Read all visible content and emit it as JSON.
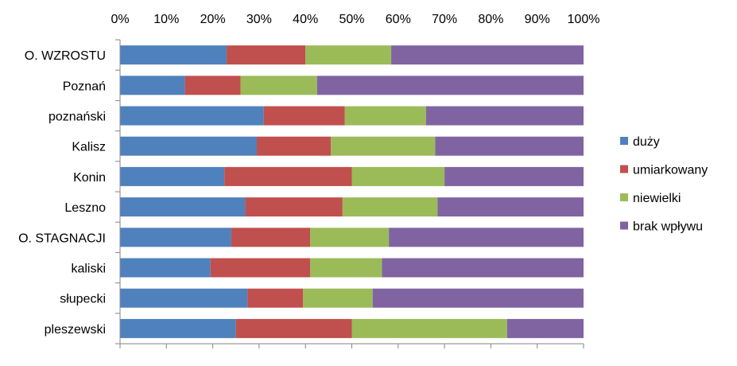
{
  "chart_data": {
    "type": "bar",
    "orientation": "horizontal",
    "stacked": "percent",
    "title": "",
    "xlabel": "",
    "ylabel": "",
    "xlim": [
      0,
      100
    ],
    "x_ticks": [
      "0%",
      "10%",
      "20%",
      "30%",
      "40%",
      "50%",
      "60%",
      "70%",
      "80%",
      "90%",
      "100%"
    ],
    "x_axis_position": "top",
    "grid": false,
    "legend_position": "right",
    "categories": [
      "O. WZROSTU",
      "Poznań",
      "poznański",
      "Kalisz",
      "Konin",
      "Leszno",
      "O. STAGNACJI",
      "kaliski",
      "słupecki",
      "pleszewski"
    ],
    "series": [
      {
        "name": "duży",
        "color": "#4f81bd",
        "values": [
          23,
          14,
          31,
          29.5,
          22.5,
          27,
          24,
          19.5,
          27.5,
          25
        ]
      },
      {
        "name": "umiarkowany",
        "color": "#c0504d",
        "values": [
          17,
          12,
          17.5,
          16,
          27.5,
          21,
          17,
          21.5,
          12,
          25
        ]
      },
      {
        "name": "niewielki",
        "color": "#9bbb59",
        "values": [
          18.5,
          16.5,
          17.5,
          22.5,
          20,
          20.5,
          17,
          15.5,
          15,
          33.5
        ]
      },
      {
        "name": "brak wpływu",
        "color": "#8064a2",
        "values": [
          41.5,
          57.5,
          34,
          32,
          30,
          31.5,
          42,
          43.5,
          45.5,
          16.5
        ]
      }
    ]
  }
}
